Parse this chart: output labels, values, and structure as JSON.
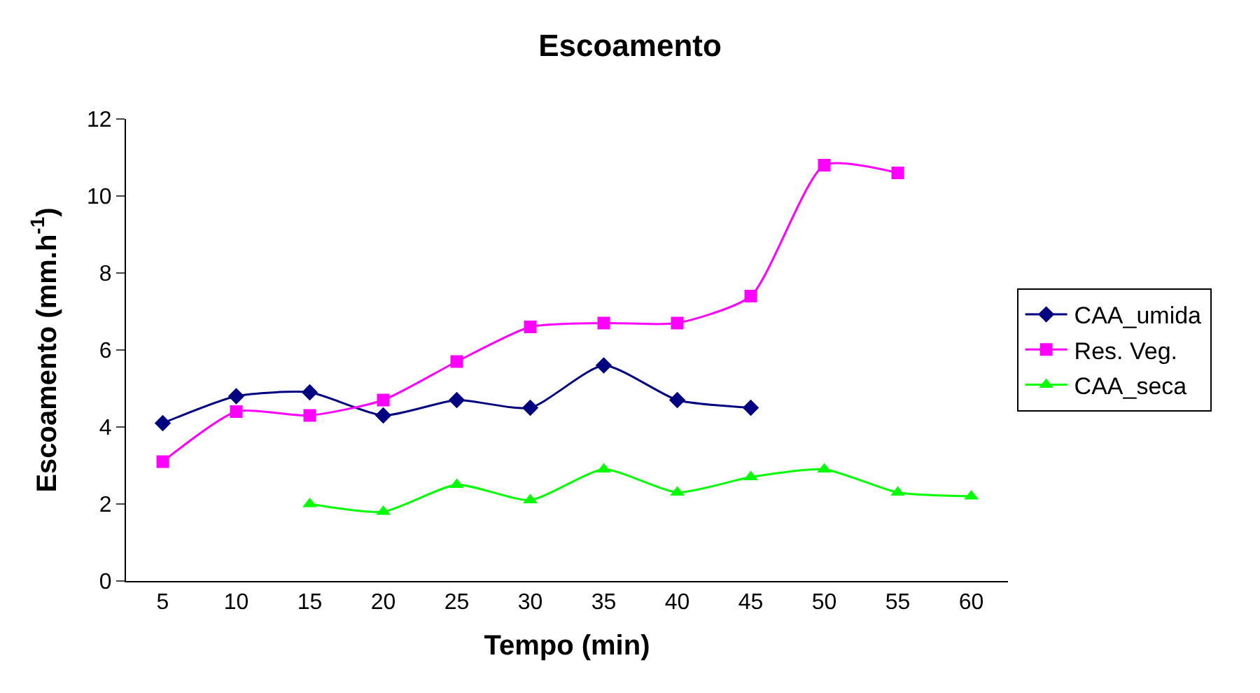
{
  "chart_data": {
    "type": "line",
    "title": "Escoamento",
    "xlabel": "Tempo (min)",
    "ylabel": "Escoamento (mm.h$^{-1}$)",
    "categories": [
      "5",
      "10",
      "15",
      "20",
      "25",
      "30",
      "35",
      "40",
      "45",
      "50",
      "55",
      "60"
    ],
    "series": [
      {
        "name": "CAA_umida",
        "color": "#000080",
        "marker": "diamond",
        "values": [
          4.1,
          4.8,
          4.9,
          4.3,
          4.7,
          4.5,
          5.6,
          4.7,
          4.5,
          null,
          null,
          null
        ]
      },
      {
        "name": "Res. Veg.",
        "color": "#ff00ff",
        "marker": "square",
        "values": [
          3.1,
          4.4,
          4.3,
          4.7,
          5.7,
          6.6,
          6.7,
          6.7,
          7.4,
          10.8,
          10.6,
          null
        ]
      },
      {
        "name": "CAA_seca",
        "color": "#00ff00",
        "marker": "triangle",
        "values": [
          null,
          null,
          2.0,
          1.8,
          2.5,
          2.1,
          2.9,
          2.3,
          2.7,
          2.9,
          2.3,
          2.2
        ]
      }
    ],
    "ylim": [
      0,
      12
    ],
    "yticks": [
      0,
      2,
      4,
      6,
      8,
      10,
      12
    ],
    "grid": false,
    "legend": "right"
  }
}
